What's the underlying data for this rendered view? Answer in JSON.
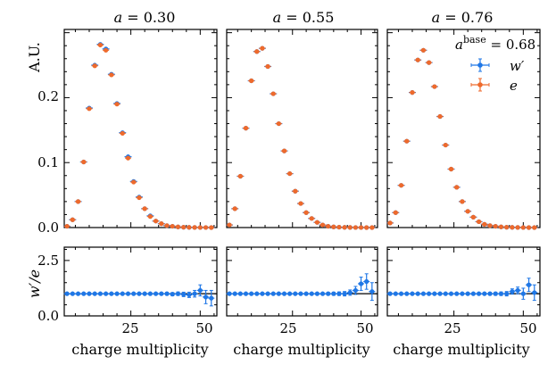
{
  "colors": {
    "w": "#1f77e6",
    "e": "#ee6a2c",
    "ratio_line": "#000000"
  },
  "chart_data": {
    "type": "scatter",
    "ylabel_top": "A.U.",
    "ylabel_bottom": "w′/e",
    "xlabel": "charge multiplicity",
    "xlim": [
      1,
      56
    ],
    "xticks": [
      25,
      50
    ],
    "ylim_top": [
      0,
      0.305
    ],
    "yticks_top": [
      "0.0",
      "0.1",
      "0.2"
    ],
    "yticks_top_values": [
      0,
      0.1,
      0.2
    ],
    "ylim_bottom": [
      0,
      3.1
    ],
    "yticks_bottom": [
      "0.0",
      "2.5"
    ],
    "yticks_bottom_values": [
      0,
      2.5
    ],
    "x": [
      2,
      4,
      6,
      8,
      10,
      12,
      14,
      16,
      18,
      20,
      22,
      24,
      26,
      28,
      30,
      32,
      34,
      36,
      38,
      40,
      42,
      44,
      46,
      48,
      50,
      52,
      54
    ],
    "legend": {
      "title_prefix": "a",
      "title_sup": "base",
      "title_value": " = 0.68",
      "entries": [
        {
          "label": "w′",
          "series": "w"
        },
        {
          "label": "e",
          "series": "e"
        }
      ]
    },
    "panels": [
      {
        "title": "a = 0.30",
        "title_var": "a",
        "title_value": " = 0.30",
        "e": [
          0.002,
          0.012,
          0.04,
          0.101,
          0.183,
          0.249,
          0.281,
          0.273,
          0.235,
          0.19,
          0.145,
          0.107,
          0.07,
          0.046,
          0.029,
          0.017,
          0.01,
          0.006,
          0.003,
          0.002,
          0.001,
          0.0005,
          0.0003,
          0.0002,
          0.0001,
          0.0001,
          0.0
        ],
        "w": [
          0.002,
          0.012,
          0.04,
          0.101,
          0.184,
          0.25,
          0.282,
          0.275,
          0.236,
          0.191,
          0.146,
          0.109,
          0.071,
          0.047,
          0.029,
          0.018,
          0.01,
          0.006,
          0.003,
          0.002,
          0.001,
          0.0005,
          0.0003,
          0.0002,
          0.0001,
          0.0001,
          0.0
        ],
        "ratio": [
          1.0,
          1.0,
          1.0,
          1.0,
          1.0,
          1.0,
          1.0,
          1.0,
          1.0,
          1.0,
          1.0,
          1.0,
          1.0,
          1.0,
          1.0,
          1.0,
          1.0,
          1.0,
          1.0,
          0.98,
          1.0,
          0.97,
          0.95,
          1.0,
          1.15,
          0.85,
          0.8
        ],
        "ratio_err": [
          0.05,
          0.04,
          0.03,
          0.03,
          0.03,
          0.03,
          0.03,
          0.03,
          0.03,
          0.03,
          0.03,
          0.03,
          0.03,
          0.03,
          0.04,
          0.04,
          0.05,
          0.05,
          0.06,
          0.07,
          0.08,
          0.1,
          0.12,
          0.15,
          0.25,
          0.3,
          0.35
        ]
      },
      {
        "title": "a = 0.55",
        "title_var": "a",
        "title_value": " = 0.55",
        "e": [
          0.004,
          0.029,
          0.079,
          0.153,
          0.226,
          0.271,
          0.276,
          0.248,
          0.206,
          0.16,
          0.118,
          0.083,
          0.056,
          0.037,
          0.023,
          0.014,
          0.008,
          0.004,
          0.002,
          0.001,
          0.0006,
          0.0003,
          0.0002,
          0.0001,
          0.0001,
          0.0,
          0.0
        ],
        "w": [
          0.004,
          0.029,
          0.079,
          0.153,
          0.226,
          0.271,
          0.276,
          0.248,
          0.206,
          0.16,
          0.118,
          0.083,
          0.056,
          0.037,
          0.023,
          0.014,
          0.008,
          0.004,
          0.002,
          0.001,
          0.0006,
          0.0003,
          0.0002,
          0.0001,
          0.0001,
          0.0,
          0.0
        ],
        "ratio": [
          1.0,
          1.0,
          1.0,
          1.0,
          1.0,
          1.0,
          1.0,
          1.0,
          1.0,
          1.0,
          1.0,
          1.0,
          1.0,
          1.0,
          1.0,
          1.0,
          1.0,
          1.0,
          1.0,
          1.0,
          1.0,
          1.0,
          1.05,
          1.15,
          1.45,
          1.55,
          1.1
        ],
        "ratio_err": [
          0.05,
          0.04,
          0.03,
          0.03,
          0.03,
          0.03,
          0.03,
          0.03,
          0.03,
          0.03,
          0.03,
          0.03,
          0.03,
          0.03,
          0.04,
          0.04,
          0.05,
          0.05,
          0.06,
          0.07,
          0.08,
          0.1,
          0.12,
          0.18,
          0.3,
          0.35,
          0.4
        ]
      },
      {
        "title": "a = 0.76",
        "title_var": "a",
        "title_value": " = 0.76",
        "e": [
          0.007,
          0.023,
          0.065,
          0.133,
          0.208,
          0.258,
          0.273,
          0.254,
          0.217,
          0.171,
          0.127,
          0.09,
          0.062,
          0.04,
          0.025,
          0.016,
          0.009,
          0.005,
          0.003,
          0.002,
          0.001,
          0.0005,
          0.0003,
          0.0002,
          0.0001,
          0.0,
          0.0
        ],
        "w": [
          0.007,
          0.023,
          0.065,
          0.133,
          0.208,
          0.258,
          0.273,
          0.254,
          0.217,
          0.171,
          0.127,
          0.09,
          0.062,
          0.04,
          0.025,
          0.016,
          0.009,
          0.005,
          0.003,
          0.002,
          0.001,
          0.0005,
          0.0003,
          0.0002,
          0.0001,
          0.0,
          0.0
        ],
        "ratio": [
          1.0,
          1.0,
          1.0,
          1.0,
          1.0,
          1.0,
          1.0,
          1.0,
          1.0,
          1.0,
          1.0,
          1.0,
          1.0,
          1.0,
          1.0,
          1.0,
          1.0,
          1.0,
          1.0,
          1.0,
          1.0,
          1.0,
          1.1,
          1.15,
          1.0,
          1.4,
          1.05
        ],
        "ratio_err": [
          0.05,
          0.04,
          0.03,
          0.03,
          0.03,
          0.03,
          0.03,
          0.03,
          0.03,
          0.03,
          0.03,
          0.03,
          0.03,
          0.03,
          0.04,
          0.04,
          0.05,
          0.05,
          0.06,
          0.07,
          0.08,
          0.1,
          0.12,
          0.15,
          0.25,
          0.3,
          0.35
        ]
      }
    ]
  }
}
